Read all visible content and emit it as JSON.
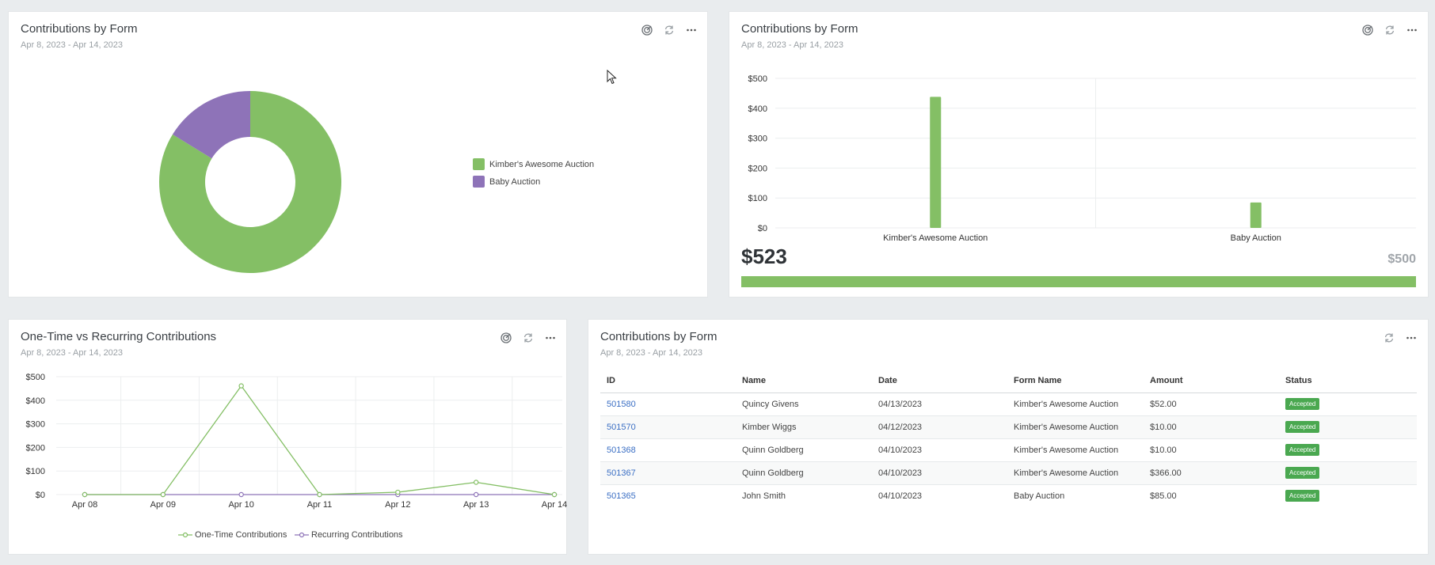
{
  "colors": {
    "green": "#84bf65",
    "purple": "#8e73b8",
    "badge": "#4aa850",
    "link": "#3b6fc4"
  },
  "card_pie": {
    "title": "Contributions by Form",
    "subtitle": "Apr 8, 2023 - Apr 14, 2023",
    "legend": [
      "Kimber's Awesome Auction",
      "Baby Auction"
    ]
  },
  "card_bar": {
    "title": "Contributions by Form",
    "subtitle": "Apr 8, 2023 - Apr 14, 2023",
    "total": "$523",
    "goal": "$500",
    "goal_progress": 1.0
  },
  "card_line": {
    "title": "One-Time vs Recurring Contributions",
    "subtitle": "Apr 8, 2023 - Apr 14, 2023",
    "legend": [
      "One-Time Contributions",
      "Recurring Contributions"
    ]
  },
  "card_table": {
    "title": "Contributions by Form",
    "subtitle": "Apr 8, 2023 - Apr 14, 2023",
    "columns": [
      "ID",
      "Name",
      "Date",
      "Form Name",
      "Amount",
      "Status"
    ],
    "rows": [
      [
        "501580",
        "Quincy Givens",
        "04/13/2023",
        "Kimber's Awesome Auction",
        "$52.00",
        "Accepted"
      ],
      [
        "501570",
        "Kimber Wiggs",
        "04/12/2023",
        "Kimber's Awesome Auction",
        "$10.00",
        "Accepted"
      ],
      [
        "501368",
        "Quinn Goldberg",
        "04/10/2023",
        "Kimber's Awesome Auction",
        "$10.00",
        "Accepted"
      ],
      [
        "501367",
        "Quinn Goldberg",
        "04/10/2023",
        "Kimber's Awesome Auction",
        "$366.00",
        "Accepted"
      ],
      [
        "501365",
        "John Smith",
        "04/10/2023",
        "Baby Auction",
        "$85.00",
        "Accepted"
      ]
    ]
  },
  "chart_data": [
    {
      "type": "pie",
      "title": "Contributions by Form",
      "categories": [
        "Kimber's Awesome Auction",
        "Baby Auction"
      ],
      "values": [
        438,
        85
      ]
    },
    {
      "type": "bar",
      "title": "Contributions by Form",
      "categories": [
        "Kimber's Awesome Auction",
        "Baby Auction"
      ],
      "values": [
        438,
        85
      ],
      "ylim": [
        0,
        500
      ],
      "yticks": [
        "$0",
        "$100",
        "$200",
        "$300",
        "$400",
        "$500"
      ],
      "grid": true
    },
    {
      "type": "line",
      "title": "One-Time vs Recurring Contributions",
      "categories": [
        "Apr 08",
        "Apr 09",
        "Apr 10",
        "Apr 11",
        "Apr 12",
        "Apr 13",
        "Apr 14"
      ],
      "series": [
        {
          "name": "One-Time Contributions",
          "values": [
            0,
            0,
            461,
            0,
            10,
            52,
            0
          ]
        },
        {
          "name": "Recurring Contributions",
          "values": [
            0,
            0,
            0,
            0,
            0,
            0,
            0
          ]
        }
      ],
      "ylim": [
        0,
        500
      ],
      "yticks": [
        "$0",
        "$100",
        "$200",
        "$300",
        "$400",
        "$500"
      ],
      "grid": true,
      "legend_position": "bottom"
    }
  ]
}
